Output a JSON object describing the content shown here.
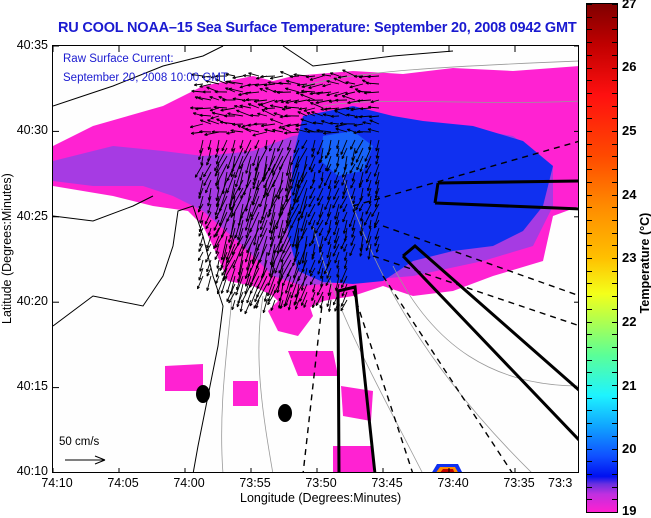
{
  "title": "RU COOL  NOAA–15  Sea Surface Temperature:  September 20, 2008 0942 GMT",
  "legend": {
    "line1": "Raw Surface Current:",
    "line2": "September 20, 2008 10:00 GMT"
  },
  "scale_label": "50 cm/s",
  "x_axis": {
    "title": "Longitude (Degrees:Minutes)",
    "ticks": [
      "74:10",
      "74:05",
      "74:00",
      "73:55",
      "73:50",
      "73:45",
      "73:40",
      "73:35",
      "73:3"
    ]
  },
  "y_axis": {
    "title": "Latitude (Degrees:Minutes)",
    "ticks": [
      "40:35",
      "40:30",
      "40:25",
      "40:20",
      "40:15",
      "40:10"
    ]
  },
  "colorbar": {
    "title": "Temperature (°C)",
    "ticks": [
      "27",
      "26",
      "25",
      "24",
      "23",
      "22",
      "21",
      "20",
      "19"
    ],
    "range": [
      19,
      27
    ]
  },
  "colors": {
    "title": "#1a1ad0",
    "warm_sst": "#ff20d0",
    "cold_sst": "#1030f0"
  }
}
